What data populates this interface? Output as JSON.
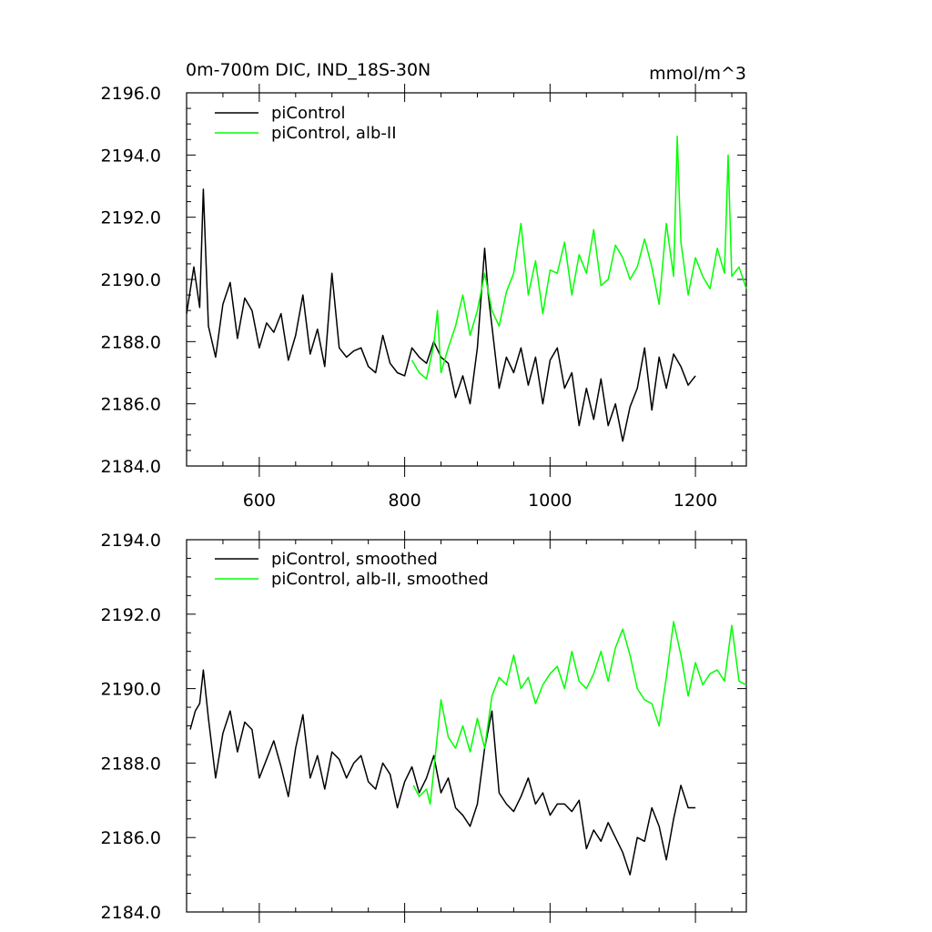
{
  "chart_data": [
    {
      "type": "line",
      "title": "0m-700m DIC, IND_18S-30N",
      "units": "mmol/m^3",
      "xlabel": "",
      "ylabel": "",
      "xlim": [
        500,
        1270
      ],
      "ylim": [
        2184.0,
        2196.0
      ],
      "x_ticks": [
        600,
        800,
        1000,
        1200
      ],
      "x_tick_labels": [
        "600",
        "800",
        "1000",
        "1200"
      ],
      "y_ticks": [
        2184.0,
        2186.0,
        2188.0,
        2190.0,
        2192.0,
        2194.0,
        2196.0
      ],
      "y_tick_labels": [
        "2184.0",
        "2186.0",
        "2188.0",
        "2190.0",
        "2192.0",
        "2194.0",
        "2196.0"
      ],
      "grid": false,
      "legend": "top-left",
      "series": [
        {
          "name": "piControl",
          "color": "#000000",
          "x": [
            500,
            510,
            518,
            523,
            530,
            540,
            550,
            560,
            570,
            580,
            590,
            600,
            610,
            620,
            630,
            640,
            650,
            660,
            670,
            680,
            690,
            700,
            710,
            720,
            730,
            740,
            750,
            760,
            770,
            780,
            790,
            800,
            810,
            820,
            830,
            840,
            850,
            860,
            870,
            880,
            890,
            900,
            910,
            915,
            920,
            930,
            940,
            950,
            960,
            970,
            980,
            990,
            1000,
            1010,
            1020,
            1030,
            1040,
            1050,
            1060,
            1070,
            1080,
            1090,
            1100,
            1110,
            1120,
            1130,
            1140,
            1150,
            1160,
            1170,
            1180,
            1190,
            1200
          ],
          "y": [
            2188.9,
            2190.4,
            2189.1,
            2192.9,
            2188.5,
            2187.5,
            2189.2,
            2189.9,
            2188.1,
            2189.4,
            2189.0,
            2187.8,
            2188.6,
            2188.3,
            2188.9,
            2187.4,
            2188.2,
            2189.5,
            2187.6,
            2188.4,
            2187.2,
            2190.2,
            2187.8,
            2187.5,
            2187.7,
            2187.8,
            2187.2,
            2187.0,
            2188.2,
            2187.3,
            2187.0,
            2186.9,
            2187.8,
            2187.5,
            2187.3,
            2188.0,
            2187.5,
            2187.3,
            2186.2,
            2186.9,
            2186.0,
            2187.8,
            2191.0,
            2189.5,
            2188.5,
            2186.5,
            2187.5,
            2187.0,
            2187.8,
            2186.6,
            2187.5,
            2186.0,
            2187.4,
            2187.8,
            2186.5,
            2187.0,
            2185.3,
            2186.5,
            2185.5,
            2186.8,
            2185.3,
            2186.0,
            2184.8,
            2185.9,
            2186.5,
            2187.8,
            2185.8,
            2187.5,
            2186.5,
            2187.6,
            2187.2,
            2186.6,
            2186.9
          ]
        },
        {
          "name": "piControl, alb-II",
          "color": "#00ff00",
          "x": [
            810,
            820,
            830,
            840,
            845,
            850,
            860,
            870,
            880,
            890,
            900,
            910,
            920,
            930,
            940,
            950,
            960,
            970,
            980,
            990,
            1000,
            1010,
            1020,
            1030,
            1040,
            1050,
            1060,
            1070,
            1080,
            1090,
            1100,
            1110,
            1120,
            1130,
            1140,
            1150,
            1160,
            1170,
            1175,
            1180,
            1190,
            1200,
            1210,
            1220,
            1230,
            1240,
            1245,
            1250,
            1260,
            1270
          ],
          "y": [
            2187.4,
            2187.0,
            2186.8,
            2187.9,
            2189.0,
            2187.0,
            2187.8,
            2188.5,
            2189.5,
            2188.2,
            2189.0,
            2190.2,
            2189.0,
            2188.5,
            2189.6,
            2190.2,
            2191.8,
            2189.5,
            2190.6,
            2188.9,
            2190.3,
            2190.2,
            2191.2,
            2189.5,
            2190.8,
            2190.2,
            2191.6,
            2189.8,
            2190.0,
            2191.1,
            2190.7,
            2190.0,
            2190.4,
            2191.3,
            2190.4,
            2189.2,
            2191.8,
            2190.1,
            2194.6,
            2191.2,
            2189.5,
            2190.7,
            2190.1,
            2189.7,
            2191.0,
            2190.2,
            2194.0,
            2190.1,
            2190.4,
            2189.7
          ]
        }
      ]
    },
    {
      "type": "line",
      "title": "",
      "xlabel": "",
      "ylabel": "",
      "xlim": [
        500,
        1270
      ],
      "ylim": [
        2184.0,
        2194.0
      ],
      "x_ticks": [
        600,
        800,
        1000,
        1200
      ],
      "x_tick_labels": [],
      "y_ticks": [
        2184.0,
        2186.0,
        2188.0,
        2190.0,
        2192.0,
        2194.0
      ],
      "y_tick_labels": [
        "2184.0",
        "2186.0",
        "2188.0",
        "2190.0",
        "2192.0",
        "2194.0"
      ],
      "grid": false,
      "legend": "top-left",
      "series": [
        {
          "name": "piControl, smoothed",
          "color": "#000000",
          "x": [
            505,
            512,
            518,
            523,
            530,
            540,
            550,
            560,
            570,
            580,
            590,
            600,
            610,
            620,
            630,
            640,
            650,
            660,
            670,
            680,
            690,
            700,
            710,
            720,
            730,
            740,
            750,
            760,
            770,
            780,
            790,
            800,
            810,
            820,
            830,
            840,
            850,
            860,
            870,
            880,
            890,
            900,
            910,
            920,
            930,
            940,
            950,
            960,
            970,
            980,
            990,
            1000,
            1010,
            1020,
            1030,
            1040,
            1050,
            1060,
            1070,
            1080,
            1090,
            1100,
            1110,
            1120,
            1130,
            1140,
            1150,
            1160,
            1170,
            1180,
            1190,
            1200
          ],
          "y": [
            2188.9,
            2189.4,
            2189.6,
            2190.5,
            2189.2,
            2187.6,
            2188.8,
            2189.4,
            2188.3,
            2189.1,
            2188.9,
            2187.6,
            2188.1,
            2188.6,
            2187.9,
            2187.1,
            2188.4,
            2189.3,
            2187.6,
            2188.2,
            2187.3,
            2188.3,
            2188.1,
            2187.6,
            2188.0,
            2188.2,
            2187.5,
            2187.3,
            2188.0,
            2187.7,
            2186.8,
            2187.5,
            2187.9,
            2187.2,
            2187.6,
            2188.2,
            2187.2,
            2187.6,
            2186.8,
            2186.6,
            2186.3,
            2186.9,
            2188.4,
            2189.4,
            2187.2,
            2186.9,
            2186.7,
            2187.1,
            2187.6,
            2186.9,
            2187.2,
            2186.6,
            2186.9,
            2186.9,
            2186.7,
            2187.0,
            2185.7,
            2186.2,
            2185.9,
            2186.4,
            2186.0,
            2185.6,
            2185.0,
            2186.0,
            2185.9,
            2186.8,
            2186.3,
            2185.4,
            2186.5,
            2187.4,
            2186.8,
            2186.8
          ]
        },
        {
          "name": "piControl, alb-II, smoothed",
          "color": "#00ff00",
          "x": [
            812,
            820,
            830,
            835,
            840,
            850,
            860,
            870,
            880,
            890,
            900,
            910,
            920,
            930,
            940,
            950,
            960,
            970,
            980,
            990,
            1000,
            1010,
            1020,
            1030,
            1040,
            1050,
            1060,
            1070,
            1080,
            1090,
            1100,
            1110,
            1120,
            1130,
            1140,
            1150,
            1160,
            1170,
            1180,
            1190,
            1200,
            1210,
            1220,
            1230,
            1240,
            1250,
            1260,
            1270
          ],
          "y": [
            2187.4,
            2187.1,
            2187.3,
            2186.9,
            2187.8,
            2189.7,
            2188.7,
            2188.4,
            2189.0,
            2188.3,
            2189.2,
            2188.4,
            2189.8,
            2190.3,
            2190.1,
            2190.9,
            2190.0,
            2190.3,
            2189.6,
            2190.1,
            2190.4,
            2190.6,
            2190.0,
            2191.0,
            2190.2,
            2190.0,
            2190.4,
            2191.0,
            2190.2,
            2191.1,
            2191.6,
            2190.9,
            2190.0,
            2189.7,
            2189.6,
            2189.0,
            2190.3,
            2191.8,
            2190.9,
            2189.8,
            2190.7,
            2190.1,
            2190.4,
            2190.5,
            2190.2,
            2191.7,
            2190.2,
            2190.1
          ]
        }
      ]
    }
  ]
}
